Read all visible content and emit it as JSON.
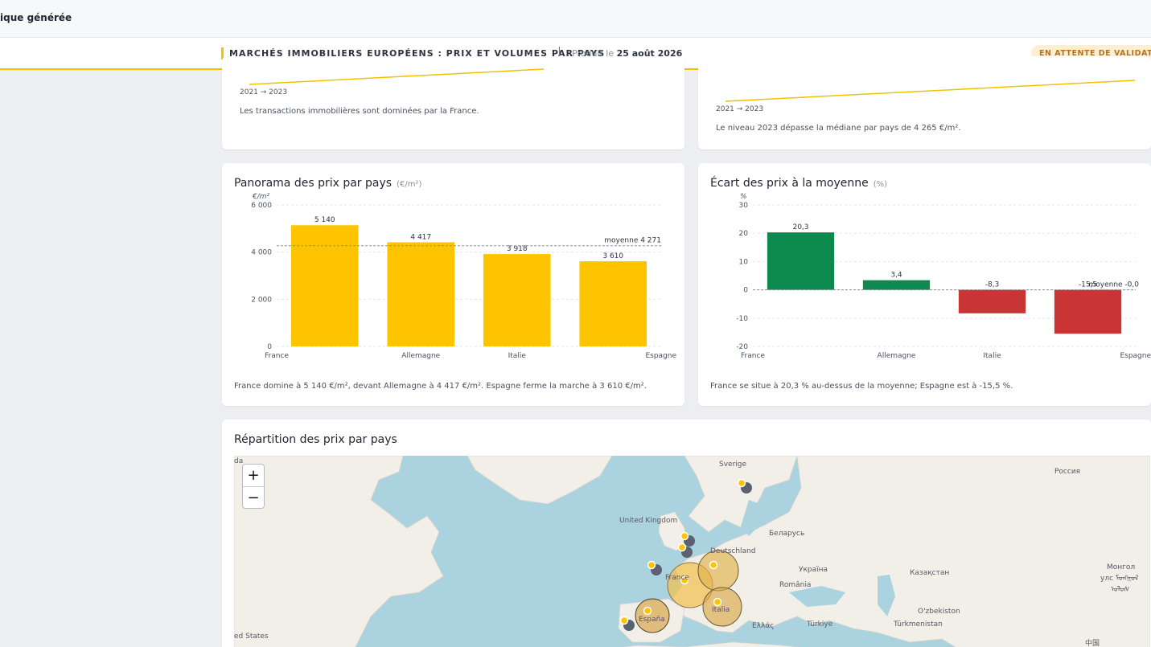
{
  "app": {
    "title": "ique générée"
  },
  "report": {
    "title": "MARCHÉS IMMOBILIERS EUROPÉENS : PRIX ET VOLUMES PAR PAYS",
    "produced_prefix": "Produit le",
    "produced_date": "25 août 2026",
    "status": "EN ATTENTE DE VALIDATION"
  },
  "kpi_left": {
    "range": "2021 → 2023",
    "text": "Les transactions immobilières sont dominées par la France."
  },
  "kpi_right": {
    "range": "2021 → 2023",
    "text": "Le niveau 2023 dépasse la médiane par pays de 4 265 €/m²."
  },
  "price_card": {
    "title": "Panorama des prix par pays",
    "unit": "(€/m²)",
    "summary": "France domine à 5 140 €/m², devant Allemagne à 4 417 €/m². Espagne ferme la marche à 3 610 €/m²."
  },
  "gap_card": {
    "title": "Écart des prix à la moyenne",
    "unit": "(%)",
    "summary": "France se situe à 20,3 % au-dessus de la moyenne; Espagne est à -15,5 %."
  },
  "map_card": {
    "title": "Répartition des prix par pays",
    "zoom_in": "+",
    "zoom_out": "−",
    "labels": [
      "Sverige",
      "Россия",
      "United Kingdom",
      "Беларусь",
      "Deutschland",
      "Україна",
      "Казақстан",
      "Монгол",
      "улс ᠮᠣᠩᠭᠣᠯ",
      "ᠤᠯᠤᠰ",
      "România",
      "O'zbekiston",
      "Türkiye",
      "Türkmenistan",
      "Ελλάς",
      "España",
      "France",
      "Italia",
      "ed States",
      "da",
      "中国"
    ]
  },
  "chart_data": [
    {
      "type": "bar",
      "title": "Panorama des prix par pays",
      "ylabel": "€/m²",
      "categories": [
        "France",
        "Allemagne",
        "Italie",
        "Espagne"
      ],
      "values": [
        5140,
        4417,
        3918,
        3610
      ],
      "value_labels": [
        "5 140",
        "4 417",
        "3 918",
        "3 610"
      ],
      "ylim": [
        0,
        6000
      ],
      "yticks": [
        0,
        2000,
        4000,
        6000
      ],
      "ytick_labels": [
        "0",
        "2 000",
        "4 000",
        "6 000"
      ],
      "reference_line": {
        "value": 4271,
        "label": "moyenne 4 271"
      },
      "color": "#ffc400",
      "grid": true
    },
    {
      "type": "bar",
      "title": "Écart des prix à la moyenne",
      "ylabel": "%",
      "categories": [
        "France",
        "Allemagne",
        "Italie",
        "Espagne"
      ],
      "values": [
        20.3,
        3.4,
        -8.3,
        -15.5
      ],
      "value_labels": [
        "20,3",
        "3,4",
        "-8,3",
        "-15,5"
      ],
      "ylim": [
        -20,
        30
      ],
      "yticks": [
        -20,
        -10,
        0,
        10,
        20,
        30
      ],
      "ytick_labels": [
        "-20",
        "-10",
        "0",
        "10",
        "20",
        "30"
      ],
      "reference_line": {
        "value": 0,
        "label": "moyenne -0,0"
      },
      "positive_color": "#0f8a4f",
      "negative_color": "#c93434",
      "grid": true
    }
  ]
}
